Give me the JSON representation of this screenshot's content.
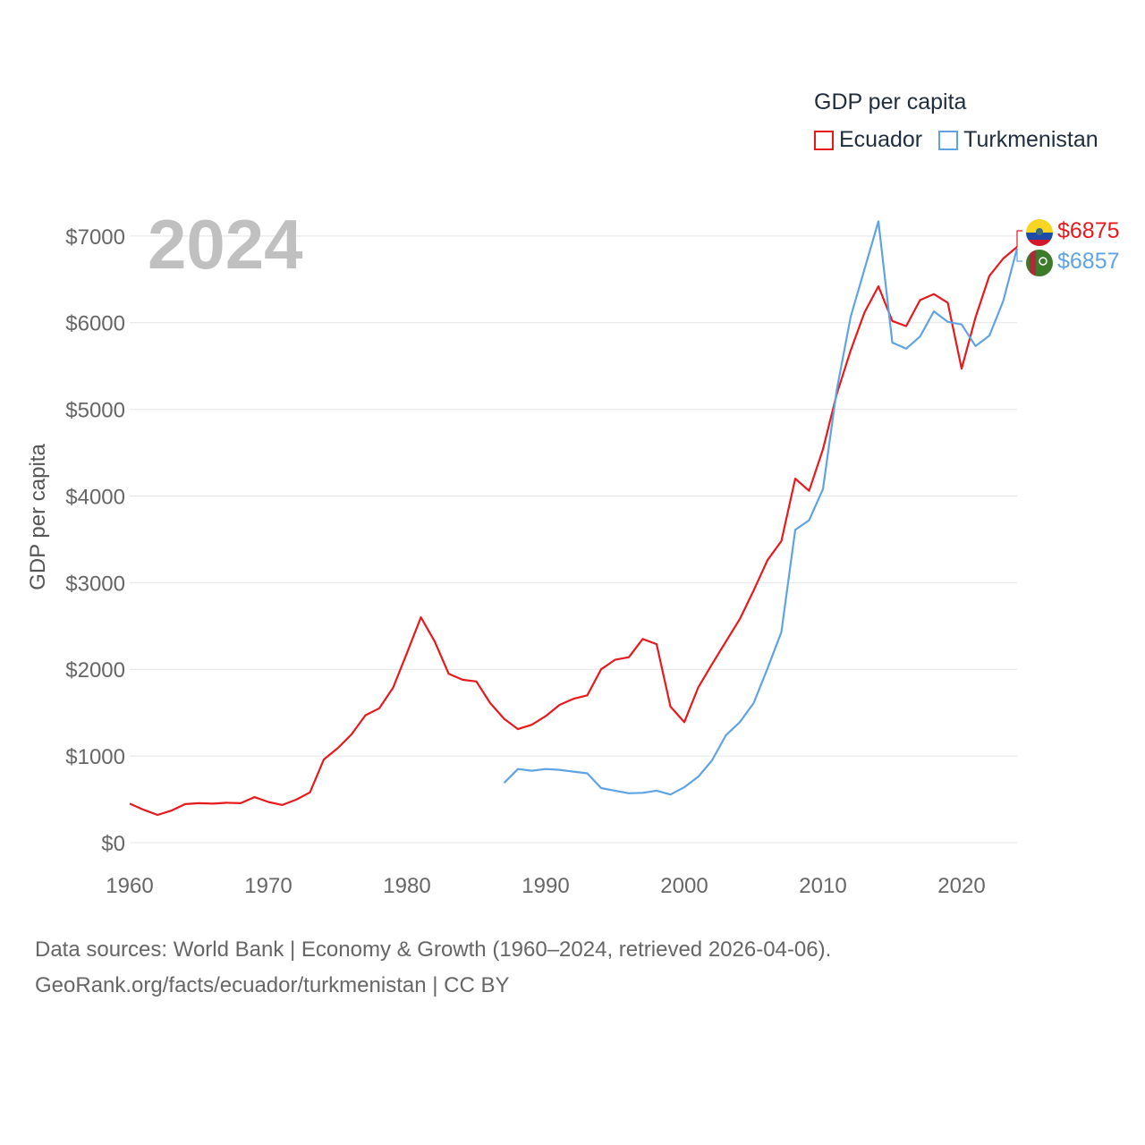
{
  "legend": {
    "title": "GDP per capita",
    "items": [
      {
        "label": "Ecuador",
        "color": "#e8191c"
      },
      {
        "label": "Turkmenistan",
        "color": "#5fa3e3"
      }
    ]
  },
  "footer": {
    "line1": "Data sources: World Bank | Economy & Growth (1960–2024, retrieved 2026-04-06).",
    "line2": "GeoRank.org/facts/ecuador/turkmenistan | CC BY"
  },
  "chart_data": {
    "type": "line",
    "title": "GDP per capita",
    "year_label": "2024",
    "xlabel": "",
    "ylabel": "GDP per capita",
    "xlim": [
      1960,
      2024
    ],
    "ylim": [
      0,
      7300
    ],
    "x_ticks": [
      "1960",
      "1970",
      "1980",
      "1990",
      "2000",
      "2010",
      "2020"
    ],
    "y_ticks": [
      "$0",
      "$1000",
      "$2000",
      "$3000",
      "$4000",
      "$5000",
      "$6000",
      "$7000"
    ],
    "grid": true,
    "series": [
      {
        "name": "Ecuador",
        "color": "#e8191c",
        "end_label": "$6875",
        "x": [
          1960,
          1961,
          1962,
          1963,
          1964,
          1965,
          1966,
          1967,
          1968,
          1969,
          1970,
          1971,
          1972,
          1973,
          1974,
          1975,
          1976,
          1977,
          1978,
          1979,
          1980,
          1981,
          1982,
          1983,
          1984,
          1985,
          1986,
          1987,
          1988,
          1989,
          1990,
          1991,
          1992,
          1993,
          1994,
          1995,
          1996,
          1997,
          1998,
          1999,
          2000,
          2001,
          2002,
          2003,
          2004,
          2005,
          2006,
          2007,
          2008,
          2009,
          2010,
          2011,
          2012,
          2013,
          2014,
          2015,
          2016,
          2017,
          2018,
          2019,
          2020,
          2021,
          2022,
          2023,
          2024
        ],
        "values": [
          450,
          380,
          320,
          370,
          445,
          455,
          450,
          460,
          455,
          525,
          470,
          435,
          495,
          580,
          960,
          1090,
          1250,
          1470,
          1550,
          1790,
          2190,
          2600,
          2320,
          1950,
          1880,
          1860,
          1610,
          1430,
          1310,
          1360,
          1460,
          1590,
          1660,
          1700,
          2000,
          2110,
          2140,
          2350,
          2290,
          1570,
          1390,
          1790,
          2060,
          2320,
          2580,
          2910,
          3260,
          3480,
          4200,
          4060,
          4540,
          5180,
          5680,
          6120,
          6420,
          6020,
          5960,
          6260,
          6330,
          6230,
          5470,
          6060,
          6540,
          6740,
          6875
        ]
      },
      {
        "name": "Turkmenistan",
        "color": "#5fa3e3",
        "end_label": "$6857",
        "x": [
          1987,
          1988,
          1989,
          1990,
          1991,
          1992,
          1993,
          1994,
          1995,
          1996,
          1997,
          1998,
          1999,
          2000,
          2001,
          2002,
          2003,
          2004,
          2005,
          2006,
          2007,
          2008,
          2009,
          2010,
          2011,
          2012,
          2013,
          2014,
          2015,
          2016,
          2017,
          2018,
          2019,
          2020,
          2021,
          2022,
          2023,
          2024
        ],
        "values": [
          690,
          850,
          830,
          850,
          840,
          820,
          800,
          630,
          600,
          570,
          575,
          600,
          555,
          640,
          760,
          950,
          1240,
          1390,
          1610,
          2010,
          2430,
          3610,
          3720,
          4080,
          5230,
          6070,
          6620,
          7170,
          5770,
          5700,
          5840,
          6130,
          6010,
          5980,
          5730,
          5850,
          6250,
          6857
        ]
      }
    ]
  }
}
